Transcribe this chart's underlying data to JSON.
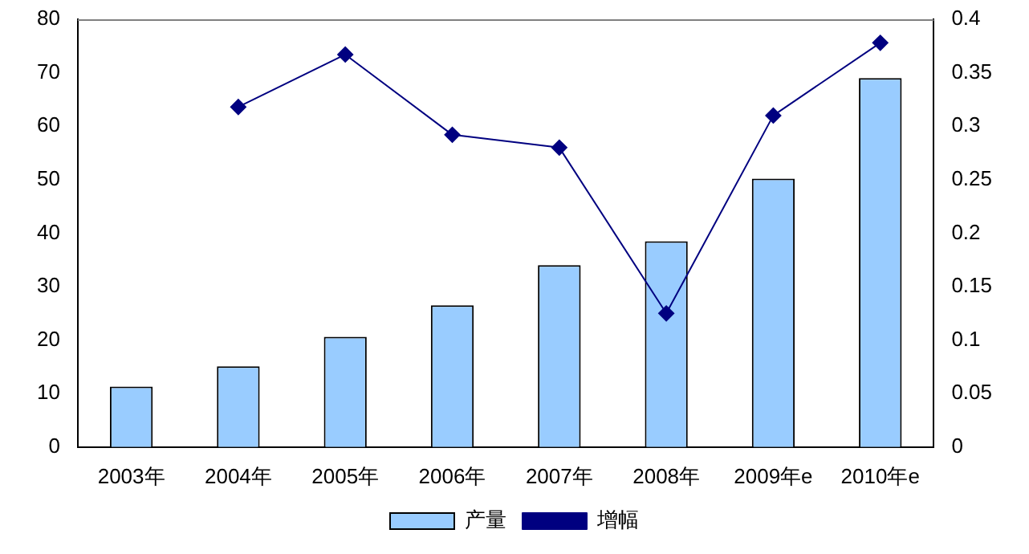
{
  "chart_data": {
    "type": "bar",
    "categories": [
      "2003年",
      "2004年",
      "2005年",
      "2006年",
      "2007年",
      "2008年",
      "2009年e",
      "2010年e"
    ],
    "series": [
      {
        "name": "产量",
        "color": "#99ccff",
        "values": [
          11.3,
          15.1,
          20.6,
          26.5,
          34,
          38.5,
          50.2,
          69
        ]
      },
      {
        "name": "增幅",
        "type": "line",
        "axis": "y2",
        "color": "#000080",
        "marker": "diamond",
        "values": [
          null,
          0.318,
          0.367,
          0.292,
          0.28,
          0.125,
          0.31,
          0.378
        ]
      }
    ],
    "ylim": [
      0,
      80
    ],
    "yticks": [
      0,
      10,
      20,
      30,
      40,
      50,
      60,
      70,
      80
    ],
    "y2lim": [
      0,
      0.4
    ],
    "y2ticks": [
      0,
      0.05,
      0.1,
      0.15,
      0.2,
      0.25,
      0.3,
      0.35,
      0.4
    ],
    "grid": false,
    "legend": "bottom"
  }
}
